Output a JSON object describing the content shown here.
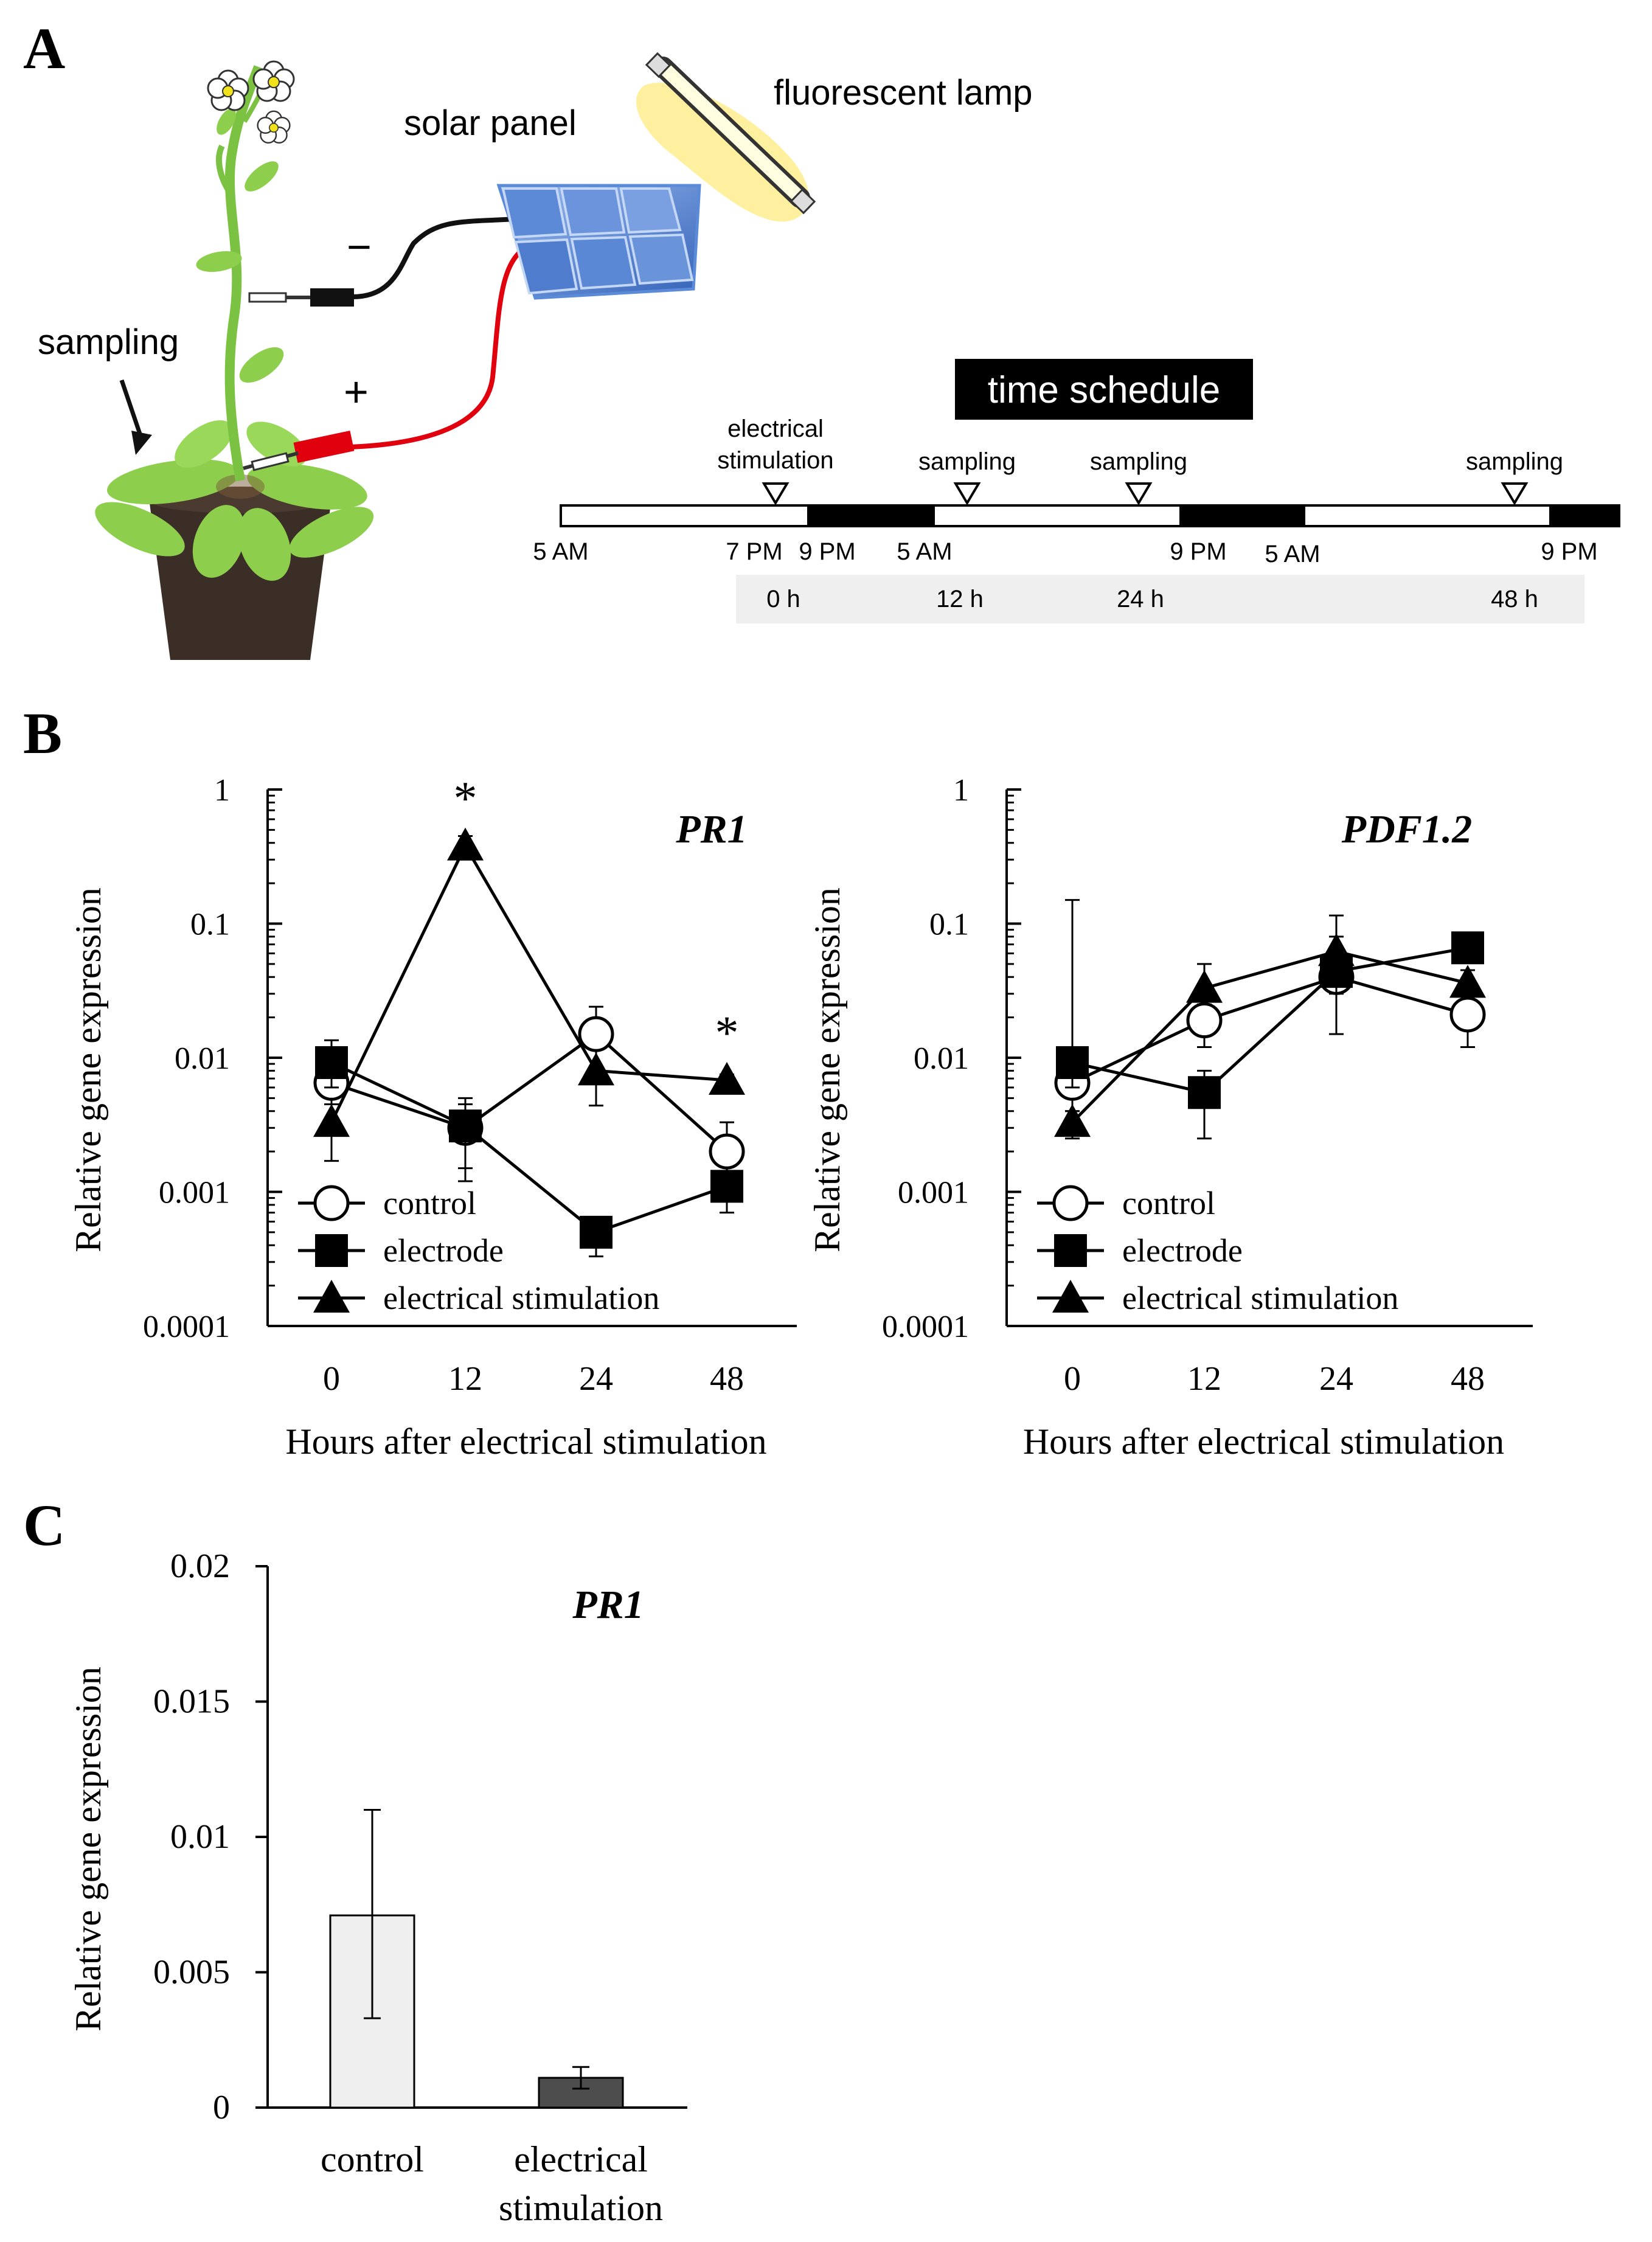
{
  "panel_labels": {
    "a": "A",
    "b": "B",
    "c": "C"
  },
  "schematic": {
    "solar_panel_label": "solar panel",
    "lamp_label": "fluorescent lamp",
    "sampling_label": "sampling",
    "minus_sign": "−",
    "plus_sign": "+",
    "colors": {
      "stem": "#7cc242",
      "leaf": "#8dcf4d",
      "pot": "#3a2e26",
      "panel": "#4a78c8",
      "red_wire": "#e0000e",
      "lamp_glow": "#fff0a0"
    }
  },
  "schedule": {
    "title": "time schedule",
    "event_stimulation_line1": "electrical",
    "event_stimulation_line2": "stimulation",
    "event_sampling_1": "sampling",
    "event_sampling_2": "sampling",
    "event_sampling_3": "sampling",
    "times": [
      "5 AM",
      "7 PM",
      "9 PM",
      "5 AM",
      "9 PM",
      "5 AM",
      "9 PM"
    ],
    "hours": [
      "0 h",
      "12 h",
      "24 h",
      "48 h"
    ]
  },
  "chart_data": [
    {
      "id": "B-PR1",
      "type": "line",
      "title": "PR1",
      "xlabel": "Hours after electrical stimulation",
      "ylabel": "Relative gene expression",
      "yscale": "log",
      "ylim": [
        0.0001,
        1
      ],
      "yticks": [
        "1",
        "0.1",
        "0.01",
        "0.001",
        "0.0001"
      ],
      "categories": [
        "0",
        "12",
        "24",
        "48"
      ],
      "series": [
        {
          "name": "control",
          "marker": "circle-open",
          "values": [
            0.0065,
            0.003,
            0.015,
            0.002
          ],
          "err_low": [
            0.0045,
            0.0012,
            0.008,
            0.0009
          ],
          "err_high": [
            0.011,
            0.0045,
            0.024,
            0.0033
          ]
        },
        {
          "name": "electrode",
          "marker": "square-filled",
          "values": [
            0.0092,
            0.0031,
            0.0005,
            0.0011
          ],
          "err_low": [
            0.006,
            0.0015,
            0.00033,
            0.0007
          ],
          "err_high": [
            0.0135,
            0.005,
            0.0006,
            0.0014
          ]
        },
        {
          "name": "electrical stimulation",
          "marker": "triangle-filled",
          "values": [
            0.0033,
            0.38,
            0.008,
            0.0068
          ],
          "err_low": [
            0.0017,
            0.3,
            0.0044,
            0.006
          ],
          "err_high": [
            0.0045,
            0.45,
            0.0085,
            0.0075
          ]
        }
      ],
      "significance": [
        {
          "x": "12",
          "label": "*"
        },
        {
          "x": "48",
          "label": "*"
        }
      ],
      "legend": [
        "control",
        "electrode",
        "electrical stimulation"
      ],
      "legend_position": "bottom-left"
    },
    {
      "id": "B-PDF1.2",
      "type": "line",
      "title": "PDF1.2",
      "xlabel": "Hours after electrical stimulation",
      "ylabel": "Relative gene expression",
      "yscale": "log",
      "ylim": [
        0.0001,
        1
      ],
      "yticks": [
        "1",
        "0.1",
        "0.01",
        "0.001",
        "0.0001"
      ],
      "categories": [
        "0",
        "12",
        "24",
        "48"
      ],
      "series": [
        {
          "name": "control",
          "marker": "circle-open",
          "values": [
            0.0065,
            0.019,
            0.04,
            0.021
          ],
          "err_low": [
            0.004,
            0.012,
            0.015,
            0.012
          ],
          "err_high": [
            0.012,
            0.028,
            0.08,
            0.03
          ]
        },
        {
          "name": "electrode",
          "marker": "square-filled",
          "values": [
            0.0092,
            0.0055,
            0.044,
            0.066
          ],
          "err_low": [
            0.006,
            0.0025,
            0.03,
            0.055
          ],
          "err_high": [
            0.15,
            0.008,
            0.06,
            0.08
          ]
        },
        {
          "name": "electrical stimulation",
          "marker": "triangle-filled",
          "values": [
            0.0033,
            0.033,
            0.062,
            0.036
          ],
          "err_low": [
            0.0025,
            0.025,
            0.045,
            0.03
          ],
          "err_high": [
            0.004,
            0.05,
            0.115,
            0.045
          ]
        }
      ],
      "legend": [
        "control",
        "electrode",
        "electrical stimulation"
      ],
      "legend_position": "bottom-left"
    },
    {
      "id": "C-PR1",
      "type": "bar",
      "title": "PR1",
      "ylabel": "Relative gene expression",
      "ylim": [
        0,
        0.02
      ],
      "yticks": [
        "0.02",
        "0.015",
        "0.01",
        "0.005",
        "0"
      ],
      "categories": [
        "control",
        "electrical stimulation"
      ],
      "category_lines": [
        [
          "control"
        ],
        [
          "electrical",
          "stimulation"
        ]
      ],
      "values": [
        0.0071,
        0.0011
      ],
      "err_low": [
        0.0033,
        0.0007
      ],
      "err_high": [
        0.011,
        0.0015
      ],
      "colors": [
        "#efefef",
        "#4d4d4d"
      ]
    }
  ]
}
